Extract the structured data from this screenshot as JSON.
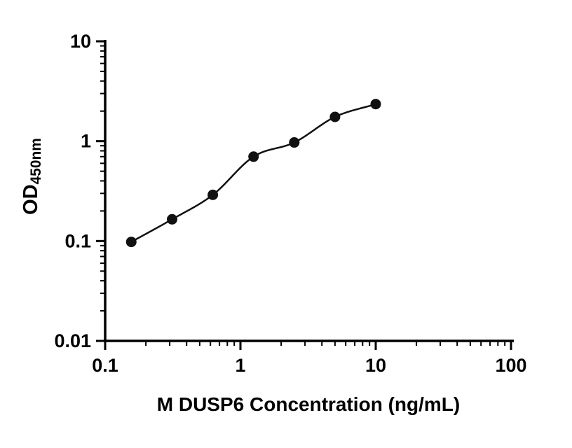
{
  "chart_data": {
    "type": "scatter",
    "title": "",
    "xlabel": "M DUSP6 Concentration (ng/mL)",
    "ylabel_main": "OD",
    "ylabel_sub": "450nm",
    "x": [
      0.156,
      0.3125,
      0.625,
      1.25,
      2.5,
      5,
      10
    ],
    "y": [
      0.098,
      0.165,
      0.29,
      0.7,
      0.97,
      1.75,
      2.35
    ],
    "xscale": "log",
    "yscale": "log",
    "xlim": [
      0.1,
      100
    ],
    "ylim": [
      0.01,
      10
    ],
    "x_ticks": [
      {
        "value": 0.1,
        "label": "0.1"
      },
      {
        "value": 1,
        "label": "1"
      },
      {
        "value": 10,
        "label": "10"
      },
      {
        "value": 100,
        "label": "100"
      }
    ],
    "y_ticks": [
      {
        "value": 0.01,
        "label": "0.01"
      },
      {
        "value": 0.1,
        "label": "0.1"
      },
      {
        "value": 1,
        "label": "1"
      },
      {
        "value": 10,
        "label": "10"
      }
    ],
    "grid": false,
    "legend": "none",
    "curve_through_points": true,
    "marker_color": "#111111",
    "line_color": "#111111",
    "axis_color": "#000000"
  }
}
